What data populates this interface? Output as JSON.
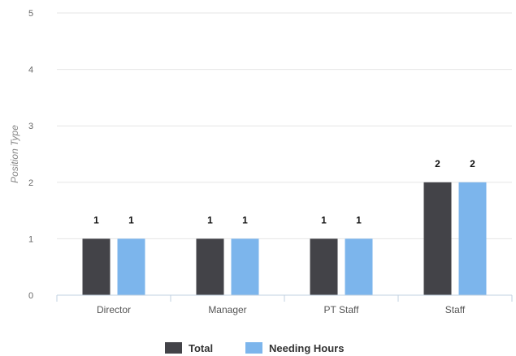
{
  "chart_data": {
    "type": "bar",
    "title": "",
    "xlabel": "",
    "ylabel": "Position Type",
    "categories": [
      "Director",
      "Manager",
      "PT Staff",
      "Staff"
    ],
    "series": [
      {
        "name": "Total",
        "values": [
          1,
          1,
          1,
          2
        ],
        "color": "#434348"
      },
      {
        "name": "Needing Hours",
        "values": [
          1,
          1,
          1,
          2
        ],
        "color": "#7cb5ec"
      }
    ],
    "ylim": [
      0,
      5
    ],
    "yticks": [
      0,
      1,
      2,
      3,
      4,
      5
    ],
    "grid": true,
    "legend": "bottom-center",
    "data_labels": true
  }
}
